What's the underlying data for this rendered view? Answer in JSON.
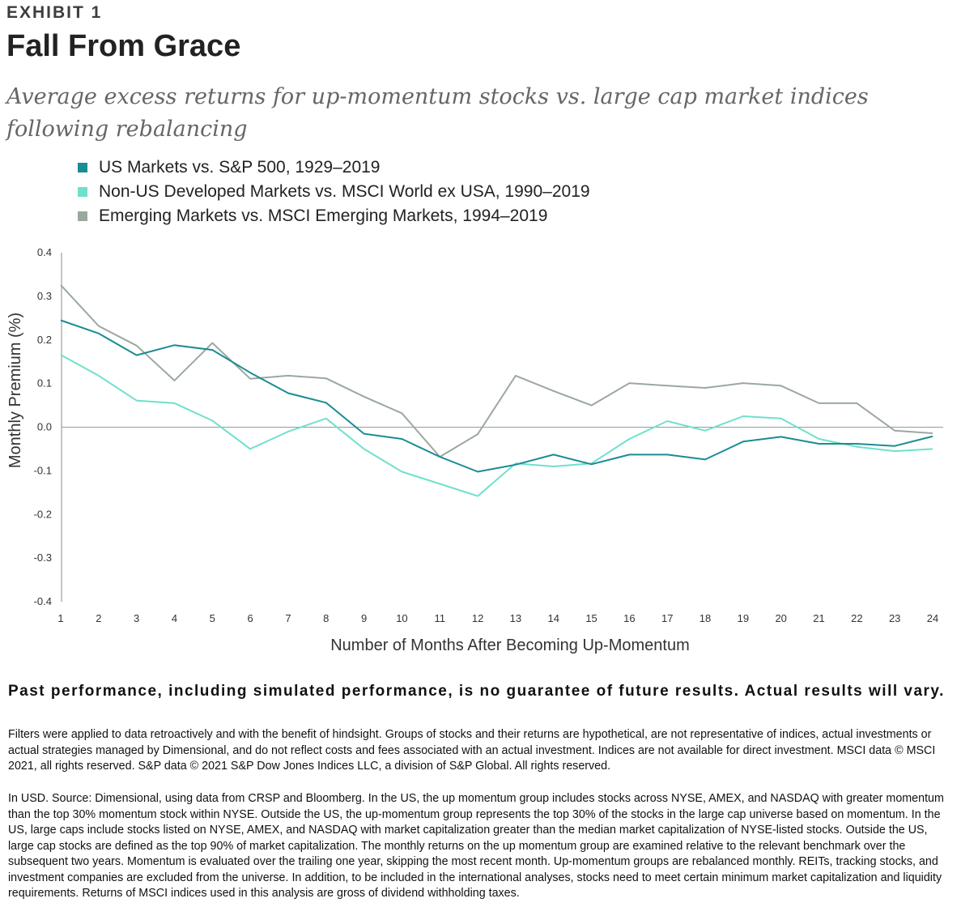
{
  "header": {
    "exhibit": "EXHIBIT 1",
    "title": "Fall From Grace",
    "subtitle": "Average excess returns for up-momentum stocks vs. large cap market indices following rebalancing"
  },
  "chart_data": {
    "type": "line",
    "xlabel": "Number of Months After Becoming Up-Momentum",
    "ylabel": "Monthly Premium (%)",
    "ylim": [
      -0.4,
      0.4
    ],
    "yticks": [
      "0.4",
      "0.3",
      "0.2",
      "0.1",
      "0.0",
      "-0.1",
      "-0.2",
      "-0.3",
      "-0.4"
    ],
    "x": [
      1,
      2,
      3,
      4,
      5,
      6,
      7,
      8,
      9,
      10,
      11,
      12,
      13,
      14,
      15,
      16,
      17,
      18,
      19,
      20,
      21,
      22,
      23,
      24
    ],
    "legend_position": "top-left",
    "grid": false,
    "series": [
      {
        "name": "US Markets vs. S&P 500, 1929–2019",
        "color": "#1a8c94",
        "values": [
          0.245,
          0.215,
          0.165,
          0.188,
          0.177,
          0.125,
          0.078,
          0.056,
          -0.015,
          -0.027,
          -0.068,
          -0.102,
          -0.086,
          -0.063,
          -0.085,
          -0.063,
          -0.063,
          -0.074,
          -0.033,
          -0.022,
          -0.038,
          -0.038,
          -0.043,
          -0.021
        ]
      },
      {
        "name": "Non-US Developed Markets vs. MSCI World ex USA, 1990–2019",
        "color": "#6fe0cc",
        "values": [
          0.166,
          0.118,
          0.061,
          0.055,
          0.015,
          -0.05,
          -0.01,
          0.02,
          -0.05,
          -0.102,
          -0.13,
          -0.158,
          -0.083,
          -0.09,
          -0.083,
          -0.027,
          0.014,
          -0.008,
          0.025,
          0.02,
          -0.027,
          -0.045,
          -0.055,
          -0.05
        ]
      },
      {
        "name": "Emerging Markets vs. MSCI Emerging Markets, 1994–2019",
        "color": "#9ba89e",
        "values": [
          0.326,
          0.232,
          0.187,
          0.107,
          0.193,
          0.111,
          0.118,
          0.112,
          0.07,
          0.032,
          -0.068,
          -0.016,
          0.118,
          0.083,
          0.05,
          0.101,
          0.095,
          0.09,
          0.101,
          0.095,
          0.055,
          0.055,
          -0.008,
          -0.014
        ]
      }
    ]
  },
  "footer": {
    "disclaimer": "Past performance, including simulated performance, is no guarantee of future results. Actual results will vary.",
    "note1": "Filters were applied to data retroactively and with the benefit of hindsight. Groups of stocks and their returns are hypothetical, are not representative of indices, actual investments or actual strategies managed by Dimensional, and do not reflect costs and fees associated with an actual investment. Indices are not available for direct investment. MSCI data © MSCI 2021, all rights reserved. S&P data © 2021 S&P Dow Jones Indices LLC, a division of S&P Global. All rights reserved.",
    "note2": "In USD. Source: Dimensional, using data from CRSP and Bloomberg. In the US, the up momentum group includes stocks across NYSE, AMEX, and NASDAQ with greater momentum than the top 30% momentum stock within NYSE. Outside the US, the up-momentum group represents the top 30% of the stocks in the large cap universe based on momentum. In the US, large caps include stocks listed on NYSE, AMEX, and NASDAQ with market capitalization greater than the median market capitalization of NYSE-listed stocks. Outside the US, large cap stocks are defined as the top 90% of market capitalization. The monthly returns on the up momentum group are examined relative to the relevant benchmark over the subsequent two years. Momentum is evaluated over the trailing one year, skipping the most recent month. Up-momentum groups are rebalanced monthly. REITs, tracking stocks, and investment companies are excluded from the universe. In addition, to be included in the international analyses, stocks need to meet certain minimum market capitalization and liquidity requirements. Returns of MSCI indices used in this analysis are gross of dividend withholding taxes."
  }
}
